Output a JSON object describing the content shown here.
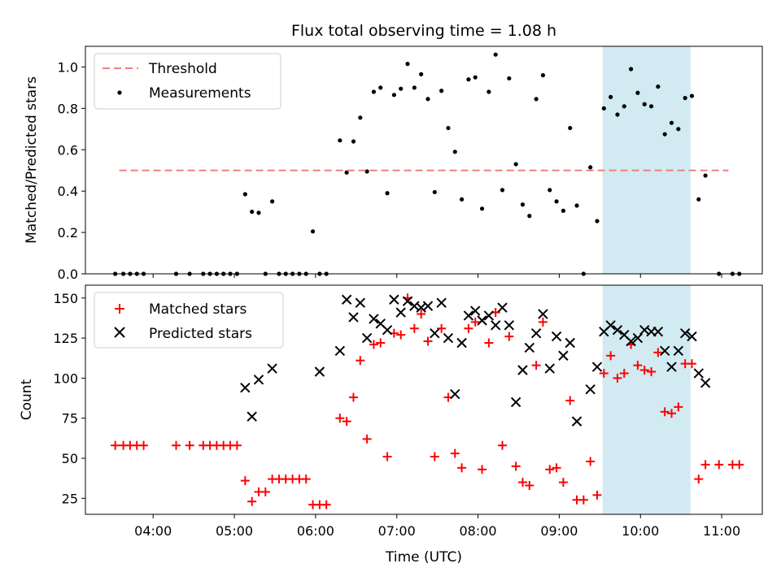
{
  "chart_data": [
    {
      "type": "scatter",
      "title": "Flux total observing time = 1.08 h",
      "xlabel": "",
      "ylabel": "Matched/Predicted stars",
      "xlim": [
        "03:10",
        "11:30"
      ],
      "ylim": [
        0,
        1.1
      ],
      "yticks": [
        0.0,
        0.2,
        0.4,
        0.6,
        0.8,
        1.0
      ],
      "ytick_labels": [
        "0.0",
        "0.2",
        "0.4",
        "0.6",
        "0.8",
        "1.0"
      ],
      "legend_position": "upper-left",
      "grid": false,
      "shaded_span": {
        "x": [
          "09:32",
          "10:37"
        ],
        "color": "#add8e6"
      },
      "threshold": {
        "name": "Threshold",
        "y": 0.5,
        "x": [
          "03:35",
          "11:05"
        ],
        "color": "#f08080"
      },
      "series": [
        {
          "name": "Measurements",
          "color": "#000000",
          "marker": "dot",
          "points": [
            [
              "03:32",
              0
            ],
            [
              "03:38",
              0
            ],
            [
              "03:43",
              0
            ],
            [
              "03:48",
              0
            ],
            [
              "03:53",
              0
            ],
            [
              "04:17",
              0
            ],
            [
              "04:27",
              0
            ],
            [
              "04:37",
              0
            ],
            [
              "04:42",
              0
            ],
            [
              "04:47",
              0
            ],
            [
              "04:52",
              0
            ],
            [
              "04:57",
              0
            ],
            [
              "05:02",
              0
            ],
            [
              "05:08",
              0.385
            ],
            [
              "05:13",
              0.3
            ],
            [
              "05:18",
              0.295
            ],
            [
              "05:23",
              0
            ],
            [
              "05:28",
              0.35
            ],
            [
              "05:33",
              0
            ],
            [
              "05:38",
              0
            ],
            [
              "05:43",
              0
            ],
            [
              "05:48",
              0
            ],
            [
              "05:53",
              0
            ],
            [
              "05:58",
              0.205
            ],
            [
              "06:03",
              0
            ],
            [
              "06:08",
              0
            ],
            [
              "06:18",
              0.645
            ],
            [
              "06:23",
              0.49
            ],
            [
              "06:28",
              0.64
            ],
            [
              "06:33",
              0.755
            ],
            [
              "06:38",
              0.495
            ],
            [
              "06:43",
              0.88
            ],
            [
              "06:48",
              0.9
            ],
            [
              "06:53",
              0.39
            ],
            [
              "06:58",
              0.865
            ],
            [
              "07:03",
              0.895
            ],
            [
              "07:08",
              1.015
            ],
            [
              "07:13",
              0.9
            ],
            [
              "07:18",
              0.965
            ],
            [
              "07:23",
              0.845
            ],
            [
              "07:28",
              0.395
            ],
            [
              "07:33",
              0.885
            ],
            [
              "07:38",
              0.705
            ],
            [
              "07:43",
              0.59
            ],
            [
              "07:48",
              0.36
            ],
            [
              "07:53",
              0.94
            ],
            [
              "07:58",
              0.95
            ],
            [
              "08:03",
              0.315
            ],
            [
              "08:08",
              0.88
            ],
            [
              "08:13",
              1.06
            ],
            [
              "08:18",
              0.405
            ],
            [
              "08:23",
              0.945
            ],
            [
              "08:28",
              0.53
            ],
            [
              "08:33",
              0.335
            ],
            [
              "08:38",
              0.28
            ],
            [
              "08:43",
              0.845
            ],
            [
              "08:48",
              0.96
            ],
            [
              "08:53",
              0.405
            ],
            [
              "08:58",
              0.35
            ],
            [
              "09:03",
              0.305
            ],
            [
              "09:08",
              0.705
            ],
            [
              "09:13",
              0.33
            ],
            [
              "09:18",
              0
            ],
            [
              "09:23",
              0.515
            ],
            [
              "09:28",
              0.255
            ],
            [
              "09:33",
              0.8
            ],
            [
              "09:38",
              0.855
            ],
            [
              "09:43",
              0.77
            ],
            [
              "09:48",
              0.81
            ],
            [
              "09:53",
              0.99
            ],
            [
              "09:58",
              0.875
            ],
            [
              "10:03",
              0.82
            ],
            [
              "10:08",
              0.81
            ],
            [
              "10:13",
              0.905
            ],
            [
              "10:18",
              0.675
            ],
            [
              "10:23",
              0.73
            ],
            [
              "10:28",
              0.7
            ],
            [
              "10:33",
              0.85
            ],
            [
              "10:38",
              0.86
            ],
            [
              "10:43",
              0.36
            ],
            [
              "10:48",
              0.475
            ],
            [
              "10:58",
              0
            ],
            [
              "11:08",
              0
            ],
            [
              "11:13",
              0
            ]
          ]
        }
      ]
    },
    {
      "type": "scatter",
      "title": "",
      "xlabel": "Time (UTC)",
      "ylabel": "Count",
      "xlim": [
        "03:10",
        "11:30"
      ],
      "ylim": [
        15,
        158
      ],
      "yticks": [
        25,
        50,
        75,
        100,
        125,
        150
      ],
      "ytick_labels": [
        "25",
        "50",
        "75",
        "100",
        "125",
        "150"
      ],
      "xticks": [
        "04:00",
        "05:00",
        "06:00",
        "07:00",
        "08:00",
        "09:00",
        "10:00",
        "11:00"
      ],
      "legend_position": "upper-left",
      "grid": false,
      "shaded_span": {
        "x": [
          "09:32",
          "10:37"
        ],
        "color": "#add8e6"
      },
      "series": [
        {
          "name": "Matched stars",
          "color": "#ff0000",
          "marker": "plus",
          "points": [
            [
              "03:32",
              58
            ],
            [
              "03:38",
              58
            ],
            [
              "03:43",
              58
            ],
            [
              "03:48",
              58
            ],
            [
              "03:53",
              58
            ],
            [
              "04:17",
              58
            ],
            [
              "04:27",
              58
            ],
            [
              "04:37",
              58
            ],
            [
              "04:42",
              58
            ],
            [
              "04:47",
              58
            ],
            [
              "04:52",
              58
            ],
            [
              "04:57",
              58
            ],
            [
              "05:02",
              58
            ],
            [
              "05:08",
              36
            ],
            [
              "05:13",
              23
            ],
            [
              "05:18",
              29
            ],
            [
              "05:23",
              29
            ],
            [
              "05:28",
              37
            ],
            [
              "05:33",
              37
            ],
            [
              "05:38",
              37
            ],
            [
              "05:43",
              37
            ],
            [
              "05:48",
              37
            ],
            [
              "05:53",
              37
            ],
            [
              "05:58",
              21
            ],
            [
              "06:03",
              21
            ],
            [
              "06:08",
              21
            ],
            [
              "06:18",
              75
            ],
            [
              "06:23",
              73
            ],
            [
              "06:28",
              88
            ],
            [
              "06:33",
              111
            ],
            [
              "06:38",
              62
            ],
            [
              "06:43",
              121
            ],
            [
              "06:48",
              122
            ],
            [
              "06:53",
              51
            ],
            [
              "06:58",
              128
            ],
            [
              "07:03",
              127
            ],
            [
              "07:08",
              150
            ],
            [
              "07:13",
              131
            ],
            [
              "07:18",
              140
            ],
            [
              "07:23",
              123
            ],
            [
              "07:28",
              51
            ],
            [
              "07:33",
              131
            ],
            [
              "07:38",
              88
            ],
            [
              "07:43",
              53
            ],
            [
              "07:48",
              44
            ],
            [
              "07:53",
              131
            ],
            [
              "07:58",
              135
            ],
            [
              "08:03",
              43
            ],
            [
              "08:08",
              122
            ],
            [
              "08:13",
              141
            ],
            [
              "08:18",
              58
            ],
            [
              "08:23",
              126
            ],
            [
              "08:28",
              45
            ],
            [
              "08:33",
              35
            ],
            [
              "08:38",
              33
            ],
            [
              "08:43",
              108
            ],
            [
              "08:48",
              135
            ],
            [
              "08:53",
              43
            ],
            [
              "08:58",
              44
            ],
            [
              "09:03",
              35
            ],
            [
              "09:08",
              86
            ],
            [
              "09:13",
              24
            ],
            [
              "09:18",
              24
            ],
            [
              "09:23",
              48
            ],
            [
              "09:28",
              27
            ],
            [
              "09:33",
              103
            ],
            [
              "09:38",
              114
            ],
            [
              "09:43",
              100
            ],
            [
              "09:48",
              103
            ],
            [
              "09:53",
              121
            ],
            [
              "09:58",
              108
            ],
            [
              "10:03",
              105
            ],
            [
              "10:08",
              104
            ],
            [
              "10:13",
              116
            ],
            [
              "10:18",
              79
            ],
            [
              "10:23",
              78
            ],
            [
              "10:28",
              82
            ],
            [
              "10:33",
              109
            ],
            [
              "10:38",
              109
            ],
            [
              "10:43",
              37
            ],
            [
              "10:48",
              46
            ],
            [
              "10:58",
              46
            ],
            [
              "11:08",
              46
            ],
            [
              "11:13",
              46
            ]
          ]
        },
        {
          "name": "Predicted stars",
          "color": "#000000",
          "marker": "x",
          "points": [
            [
              "05:08",
              94
            ],
            [
              "05:13",
              76
            ],
            [
              "05:18",
              99
            ],
            [
              "05:28",
              106
            ],
            [
              "06:03",
              104
            ],
            [
              "06:18",
              117
            ],
            [
              "06:23",
              149
            ],
            [
              "06:28",
              138
            ],
            [
              "06:33",
              147
            ],
            [
              "06:38",
              125
            ],
            [
              "06:43",
              137
            ],
            [
              "06:48",
              134
            ],
            [
              "06:53",
              130
            ],
            [
              "06:58",
              149
            ],
            [
              "07:03",
              141
            ],
            [
              "07:08",
              148
            ],
            [
              "07:13",
              145
            ],
            [
              "07:18",
              144
            ],
            [
              "07:23",
              145
            ],
            [
              "07:28",
              128
            ],
            [
              "07:33",
              147
            ],
            [
              "07:38",
              125
            ],
            [
              "07:43",
              90
            ],
            [
              "07:48",
              122
            ],
            [
              "07:53",
              139
            ],
            [
              "07:58",
              142
            ],
            [
              "08:03",
              136
            ],
            [
              "08:08",
              139
            ],
            [
              "08:13",
              133
            ],
            [
              "08:18",
              144
            ],
            [
              "08:23",
              133
            ],
            [
              "08:28",
              85
            ],
            [
              "08:33",
              105
            ],
            [
              "08:38",
              119
            ],
            [
              "08:43",
              128
            ],
            [
              "08:48",
              140
            ],
            [
              "08:53",
              106
            ],
            [
              "08:58",
              126
            ],
            [
              "09:03",
              114
            ],
            [
              "09:08",
              122
            ],
            [
              "09:13",
              73
            ],
            [
              "09:23",
              93
            ],
            [
              "09:28",
              107
            ],
            [
              "09:33",
              129
            ],
            [
              "09:38",
              133
            ],
            [
              "09:43",
              130
            ],
            [
              "09:48",
              127
            ],
            [
              "09:53",
              123
            ],
            [
              "09:58",
              125
            ],
            [
              "10:03",
              130
            ],
            [
              "10:08",
              129
            ],
            [
              "10:13",
              129
            ],
            [
              "10:18",
              117
            ],
            [
              "10:23",
              107
            ],
            [
              "10:28",
              117
            ],
            [
              "10:33",
              128
            ],
            [
              "10:38",
              126
            ],
            [
              "10:43",
              103
            ],
            [
              "10:48",
              97
            ]
          ]
        }
      ]
    }
  ]
}
